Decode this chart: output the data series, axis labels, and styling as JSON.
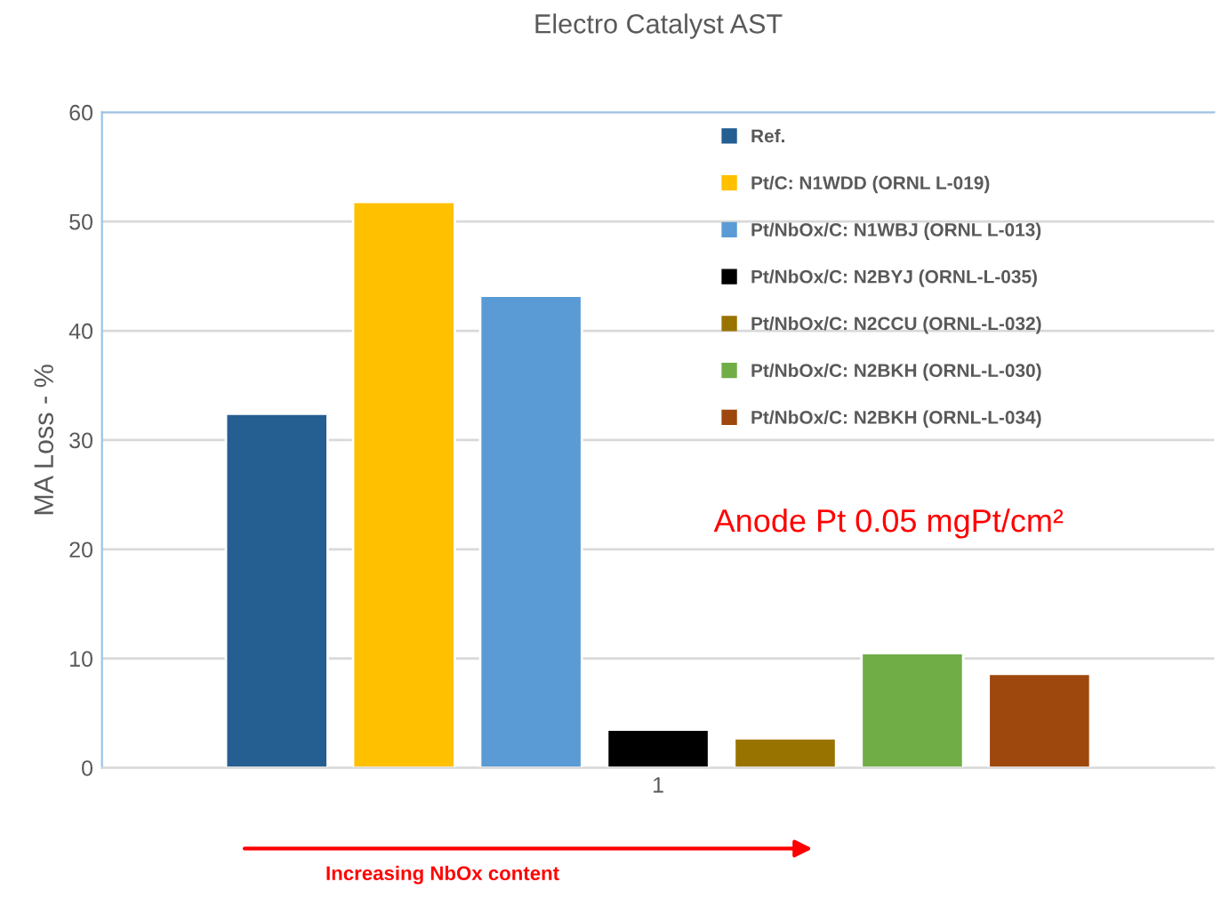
{
  "chart_data": {
    "type": "bar",
    "title": "Electro Catalyst AST",
    "ylabel": "MA Loss - %",
    "categories": [
      "1"
    ],
    "series": [
      {
        "name": "Ref.",
        "color": "#255e91",
        "values": [
          32.4
        ]
      },
      {
        "name": "Pt/C: N1WDD (ORNL L-019)",
        "color": "#ffc000",
        "values": [
          51.8
        ]
      },
      {
        "name": "Pt/NbOx/C: N1WBJ (ORNL L-013)",
        "color": "#5b9bd5",
        "values": [
          43.2
        ]
      },
      {
        "name": "Pt/NbOx/C: N2BYJ (ORNL-L-035)",
        "color": "#000000",
        "values": [
          3.5
        ]
      },
      {
        "name": "Pt/NbOx/C: N2CCU (ORNL-L-032)",
        "color": "#997300",
        "values": [
          2.7
        ]
      },
      {
        "name": "Pt/NbOx/C: N2BKH (ORNL-L-030)",
        "color": "#70ad47",
        "values": [
          10.5
        ]
      },
      {
        "name": "Pt/NbOx/C: N2BKH (ORNL-L-034)",
        "color": "#9e480e",
        "values": [
          8.6
        ]
      }
    ],
    "ylim": [
      0,
      60
    ],
    "yticks": [
      0,
      10,
      20,
      30,
      40,
      50,
      60
    ],
    "grid": "y",
    "legend": "top right",
    "annotations": [
      "Anode Pt 0.05 mgPt/cm²",
      "Increasing NbOx content"
    ]
  }
}
